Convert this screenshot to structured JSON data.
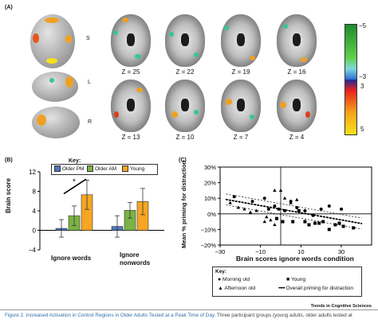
{
  "panel_a": {
    "label": "(A)",
    "views": [
      "S",
      "L",
      "R"
    ],
    "slices_top": [
      "Z = 25",
      "Z = 22",
      "Z = 19",
      "Z = 16"
    ],
    "slices_bottom": [
      "Z = 13",
      "Z = 10",
      "Z = 7",
      "Z = 4"
    ],
    "colorbar": {
      "ticks": [
        "−5",
        "−3",
        "3",
        "5"
      ],
      "colors": [
        "#1e8a2e",
        "#5fd04a",
        "#7fd8d8",
        "#2e6fd6",
        "#1b2c9c",
        "#e8231b",
        "#f5a21b",
        "#f8e21b"
      ]
    },
    "blob_colors": {
      "warm": "#f0a020",
      "hot": "#f5e11a",
      "red": "#d8401b",
      "cool": "#37c78e"
    }
  },
  "panel_b": {
    "label": "(B)",
    "key_title": "Key:",
    "legend": [
      "Older PM",
      "Older AM",
      "Young"
    ],
    "ylabel": "Brain score",
    "groups": [
      "Ignore words",
      "Ignore nonwords"
    ],
    "significance": "*"
  },
  "panel_c": {
    "label": "(C)",
    "ylabel": "Mean % priming for distraction",
    "xlabel": "Brain scores ignore words condition",
    "key_title": "Key:",
    "key_items": [
      "Morning old",
      "Young",
      "Afternoon old",
      "Overall priming for distraction"
    ]
  },
  "chart_data": [
    {
      "type": "bar",
      "categories": [
        "Ignore words",
        "Ignore nonwords"
      ],
      "series": [
        {
          "name": "Older PM",
          "values": [
            0.4,
            0.8
          ],
          "error": [
            1.8,
            2.2
          ]
        },
        {
          "name": "Older AM",
          "values": [
            3.0,
            4.1
          ],
          "error": [
            2.0,
            1.6
          ]
        },
        {
          "name": "Young",
          "values": [
            7.3,
            5.9
          ],
          "error": [
            3.0,
            2.7
          ]
        }
      ],
      "colors": [
        "#4a78b8",
        "#7ab342",
        "#f5a623"
      ],
      "ylim": [
        -4,
        12
      ],
      "yticks": [
        -4,
        0,
        4,
        8,
        12
      ],
      "ylabel": "Brain score"
    },
    {
      "type": "scatter",
      "xlim": [
        -30,
        45
      ],
      "ylim": [
        -20,
        30
      ],
      "xticks": [
        -30,
        -10,
        10,
        30
      ],
      "yticks": [
        -20,
        -10,
        0,
        10,
        20,
        30
      ],
      "ytick_labels": [
        "−20%",
        "−10%",
        "0%",
        "10%",
        "20%",
        "30%"
      ],
      "xtick_labels": [
        "−30",
        "−10",
        "10",
        "30"
      ],
      "xlabel": "Brain scores ignore words condition",
      "ylabel": "Mean % priming for distraction",
      "series": [
        {
          "name": "Morning old",
          "marker": "circle",
          "points": [
            [
              -23,
              11
            ],
            [
              -14,
              8
            ],
            [
              -8,
              10
            ],
            [
              -6,
              3
            ],
            [
              -3,
              5
            ],
            [
              -1,
              3
            ],
            [
              2,
              2
            ],
            [
              5,
              8
            ],
            [
              8,
              4
            ],
            [
              12,
              2
            ],
            [
              16,
              -1
            ],
            [
              20,
              3
            ],
            [
              24,
              5
            ],
            [
              30,
              3
            ]
          ]
        },
        {
          "name": "Young",
          "marker": "square",
          "points": [
            [
              -2,
              -3
            ],
            [
              1,
              -5
            ],
            [
              6,
              -5
            ],
            [
              9,
              2
            ],
            [
              12,
              -5
            ],
            [
              14,
              -7
            ],
            [
              17,
              -6
            ],
            [
              19,
              -6
            ],
            [
              21,
              -5
            ],
            [
              24,
              -10
            ],
            [
              27,
              -7
            ],
            [
              29,
              -6
            ],
            [
              31,
              -8
            ],
            [
              36,
              -9
            ]
          ]
        },
        {
          "name": "Afternoon old",
          "marker": "triangle",
          "points": [
            [
              -25,
              7
            ],
            [
              -21,
              4
            ],
            [
              -18,
              3
            ],
            [
              -15,
              1
            ],
            [
              -12,
              2
            ],
            [
              -7,
              -2
            ],
            [
              -5,
              -4
            ],
            [
              -3,
              -7
            ],
            [
              -3,
              15
            ],
            [
              0,
              15
            ],
            [
              2,
              10
            ],
            [
              -8,
              -5
            ],
            [
              5,
              7
            ],
            [
              8,
              9
            ]
          ]
        }
      ],
      "fit": {
        "name": "Overall priming for distraction",
        "intercept": 3.0,
        "slope": -0.23,
        "ci": 3.5
      },
      "reference_x": 0
    }
  ],
  "caption": {
    "title": "Figure 2. Increased Activation in Control Regions in Older Adults Tested at a Peak Time of Day.",
    "rest": "Three participant groups (young adults, older adults tested at"
  },
  "journal": "Trends in Cognitive Sciences"
}
